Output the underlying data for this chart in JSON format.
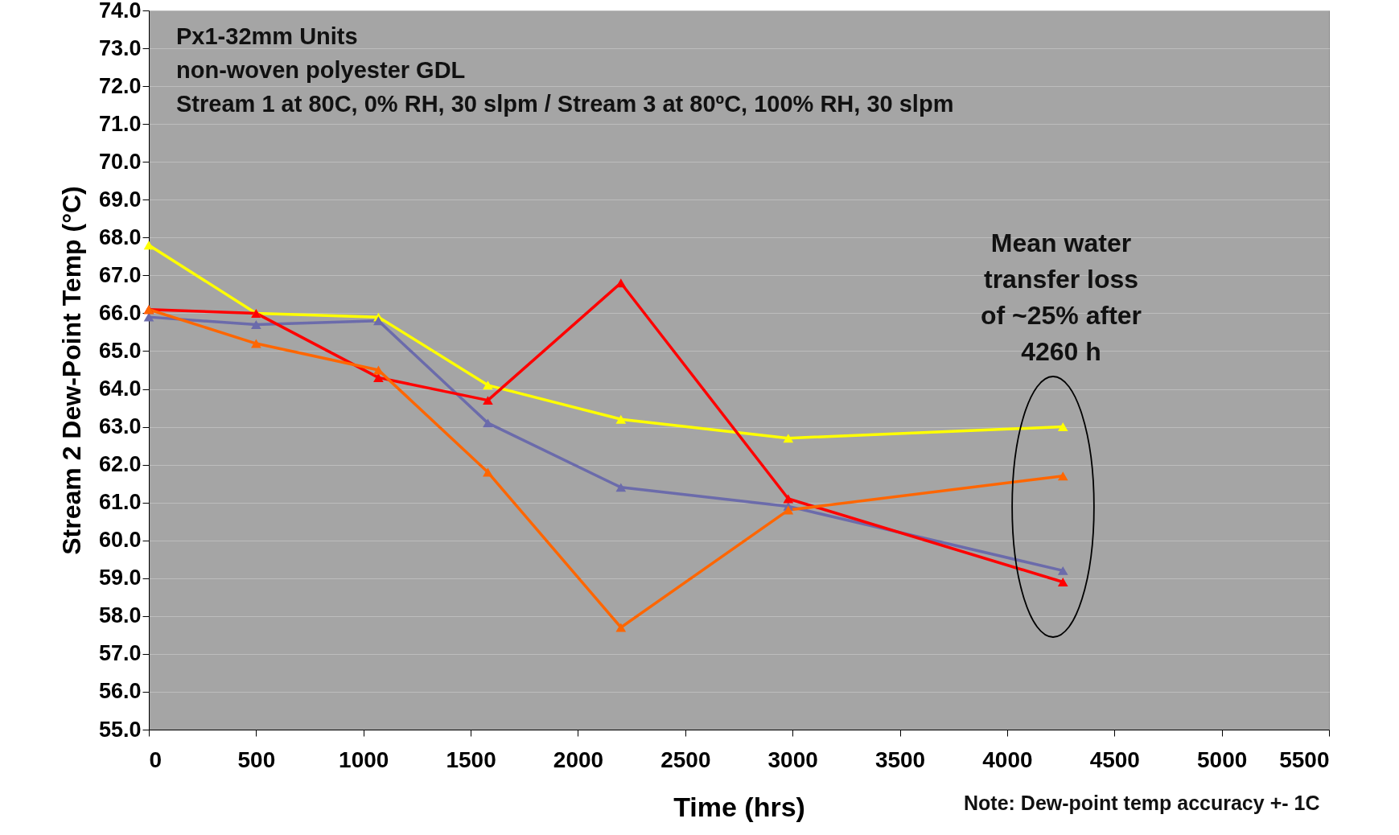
{
  "chart_data": {
    "type": "line",
    "xlabel": "Time (hrs)",
    "ylabel": "Stream 2 Dew-Point Temp  (°C)",
    "x": [
      0,
      500,
      1070,
      1580,
      2200,
      2980,
      4260
    ],
    "series": [
      {
        "color": "#ffff00",
        "values": [
          67.8,
          66.0,
          65.9,
          64.1,
          63.2,
          62.7,
          63.0
        ]
      },
      {
        "color": "#6b6bab",
        "values": [
          65.9,
          65.7,
          65.8,
          63.1,
          61.4,
          60.9,
          59.2
        ]
      },
      {
        "color": "#ff0000",
        "values": [
          66.1,
          66.0,
          64.3,
          63.7,
          66.8,
          61.1,
          58.9
        ]
      },
      {
        "color": "#ff6600",
        "values": [
          66.1,
          65.2,
          64.5,
          61.8,
          57.7,
          60.8,
          61.7
        ]
      }
    ],
    "xlim": [
      0,
      5500
    ],
    "xticks": [
      0,
      500,
      1000,
      1500,
      2000,
      2500,
      3000,
      3500,
      4000,
      4500,
      5000,
      5500
    ],
    "ylim": [
      55,
      74
    ],
    "yticks": [
      {
        "value": 55,
        "label": "55.0"
      },
      {
        "value": 56,
        "label": "56.0"
      },
      {
        "value": 57,
        "label": "57.0"
      },
      {
        "value": 58,
        "label": "58.0"
      },
      {
        "value": 59,
        "label": "59.0"
      },
      {
        "value": 60,
        "label": "60.0"
      },
      {
        "value": 61,
        "label": "61.0"
      },
      {
        "value": 62,
        "label": "62.0"
      },
      {
        "value": 63,
        "label": "63.0"
      },
      {
        "value": 64,
        "label": "64.0"
      },
      {
        "value": 65,
        "label": "65.0"
      },
      {
        "value": 66,
        "label": "66.0"
      },
      {
        "value": 67,
        "label": "67.0"
      },
      {
        "value": 68,
        "label": "68.0"
      },
      {
        "value": 69,
        "label": "69.0"
      },
      {
        "value": 70,
        "label": "70.0"
      },
      {
        "value": 71,
        "label": "71.0"
      },
      {
        "value": 72,
        "label": "72.0"
      },
      {
        "value": 73,
        "label": "73.0"
      },
      {
        "value": 74,
        "label": "74.0"
      }
    ],
    "annotations": [
      "Px1-32mm  Units",
      "non-woven polyester GDL",
      "Stream 1 at 80C, 0% RH, 30 slpm / Stream 3 at 80ºC, 100% RH, 30 slpm",
      "Mean water transfer loss of ~25% after 4260 h",
      "Note: Dew-point temp accuracy +- 1C"
    ],
    "grid": "y",
    "marker": "triangle",
    "line_style": "solid"
  }
}
